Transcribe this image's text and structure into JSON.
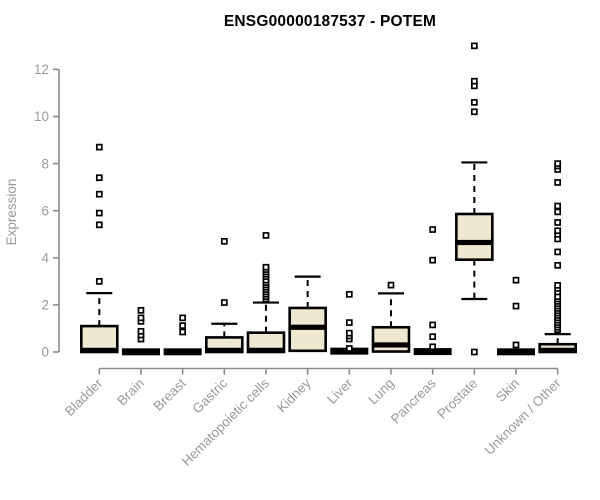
{
  "chart_data": {
    "type": "boxplot",
    "title": "ENSG00000187537 - POTEM",
    "ylabel": "Expression",
    "xlabel": "",
    "ylim": [
      0,
      13.2
    ],
    "yticks": [
      0,
      2,
      4,
      6,
      8,
      10,
      12
    ],
    "grid": false,
    "legend": null,
    "boxes": [
      {
        "category": "Bladder",
        "q1": 0,
        "median": 0.07,
        "q3": 1.1,
        "whisker_low": 0,
        "whisker_high": 2.5,
        "outliers": [
          3.0,
          5.4,
          5.9,
          6.7,
          7.4,
          8.7
        ]
      },
      {
        "category": "Brain",
        "q1": 0,
        "median": 0.02,
        "q3": 0.05,
        "whisker_low": 0,
        "whisker_high": 0.05,
        "outliers": [
          0.55,
          0.72,
          0.88,
          1.3,
          1.45,
          1.77
        ]
      },
      {
        "category": "Breast",
        "q1": 0,
        "median": 0.02,
        "q3": 0.05,
        "whisker_low": 0,
        "whisker_high": 0.05,
        "outliers": [
          0.85,
          1.12,
          1.45
        ]
      },
      {
        "category": "Gastric",
        "q1": 0,
        "median": 0.07,
        "q3": 0.62,
        "whisker_low": 0,
        "whisker_high": 1.2,
        "outliers": [
          2.1,
          4.7
        ]
      },
      {
        "category": "Hematopoietic cells",
        "q1": 0,
        "median": 0.07,
        "q3": 0.82,
        "whisker_low": 0,
        "whisker_high": 2.1,
        "outliers": [
          2.25,
          2.35,
          2.45,
          2.55,
          2.65,
          2.75,
          2.85,
          2.95,
          3.05,
          3.2,
          3.3,
          3.4,
          3.5,
          3.6,
          4.95
        ]
      },
      {
        "category": "Kidney",
        "q1": 0.05,
        "median": 1.05,
        "q3": 1.87,
        "whisker_low": 0.05,
        "whisker_high": 3.2,
        "outliers": []
      },
      {
        "category": "Liver",
        "q1": 0,
        "median": 0.05,
        "q3": 0.1,
        "whisker_low": 0,
        "whisker_high": 0.1,
        "outliers": [
          0.15,
          0.55,
          0.68,
          0.8,
          1.25,
          2.45
        ]
      },
      {
        "category": "Lung",
        "q1": 0.02,
        "median": 0.3,
        "q3": 1.05,
        "whisker_low": 0.02,
        "whisker_high": 2.49,
        "outliers": [
          2.84
        ]
      },
      {
        "category": "Pancreas",
        "q1": 0,
        "median": 0.03,
        "q3": 0.06,
        "whisker_low": 0,
        "whisker_high": 0.06,
        "outliers": [
          0.22,
          0.65,
          1.15,
          3.9,
          5.2
        ]
      },
      {
        "category": "Prostate",
        "q1": 3.92,
        "median": 4.65,
        "q3": 5.86,
        "whisker_low": 2.25,
        "whisker_high": 8.05,
        "outliers": [
          0.0,
          10.2,
          10.6,
          11.3,
          11.5,
          13.0
        ]
      },
      {
        "category": "Skin",
        "q1": 0,
        "median": 0.02,
        "q3": 0.05,
        "whisker_low": 0,
        "whisker_high": 0.05,
        "outliers": [
          0.3,
          1.95,
          3.05
        ]
      },
      {
        "category": "Unknown / Other",
        "q1": 0,
        "median": 0.07,
        "q3": 0.33,
        "whisker_low": 0,
        "whisker_high": 0.76,
        "outliers": [
          0.95,
          1.05,
          1.15,
          1.25,
          1.35,
          1.45,
          1.55,
          1.65,
          1.75,
          1.85,
          1.95,
          2.05,
          2.15,
          2.25,
          2.35,
          2.55,
          2.7,
          2.83,
          3.68,
          4.25,
          4.8,
          5.0,
          5.15,
          5.5,
          5.95,
          6.2,
          7.2,
          7.75,
          7.9,
          8.0
        ]
      }
    ],
    "colors": {
      "box_fill": "#efe8d0",
      "box_stroke": "#000000",
      "median": "#000000",
      "axis": "#8b8b8b",
      "tick_label": "#9a9a9a",
      "title": "#000000"
    }
  }
}
